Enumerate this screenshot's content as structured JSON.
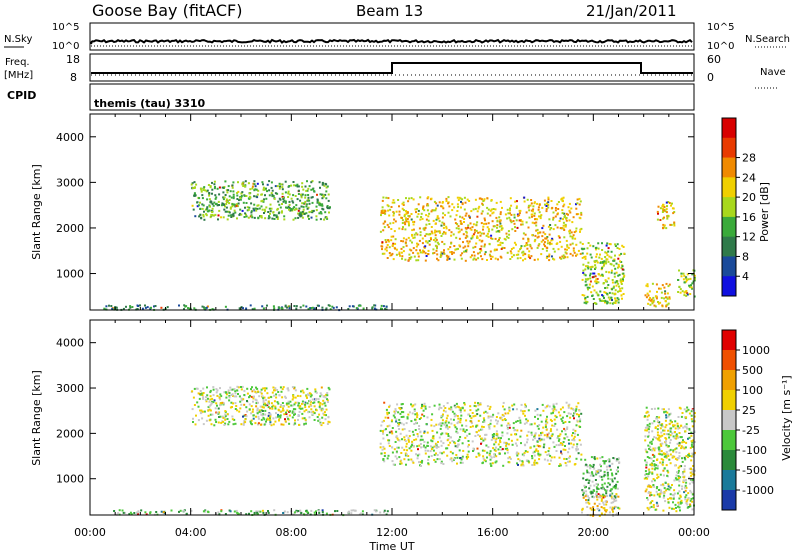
{
  "header": {
    "station": "Goose Bay (fitACF)",
    "beam": "Beam 13",
    "date": "21/Jan/2011"
  },
  "strips": {
    "nsky_label": "N.Sky",
    "nsky_ticks": [
      "10^5",
      "10^0"
    ],
    "nsearch_label": "N.Search",
    "nsearch_ticks": [
      "10^5",
      "10^0"
    ],
    "freq_label": "Freq.",
    "freq_unit": "[MHz]",
    "freq_ticks": [
      "18",
      "8"
    ],
    "nave_label": "Nave",
    "nave_ticks": [
      "60",
      "0"
    ],
    "cpid_label": "CPID",
    "cpid_value": "themis (tau) 3310"
  },
  "chart_data": [
    {
      "type": "heatmap",
      "name": "power",
      "ylabel": "Slant Range [km]",
      "xlabel": "Time UT",
      "xticks": [
        "00:00",
        "04:00",
        "08:00",
        "12:00",
        "16:00",
        "20:00",
        "00:00"
      ],
      "yticks": [
        1000,
        2000,
        3000,
        4000
      ],
      "ylim": [
        200,
        4500
      ],
      "xlim_hours": [
        0,
        24
      ],
      "colorbar": {
        "label": "Power [dB]",
        "ticks": [
          "4",
          "8",
          "12",
          "16",
          "20",
          "24",
          "28"
        ],
        "colors": [
          "#1010e0",
          "#1a4a9a",
          "#2f7a4a",
          "#3aaa3a",
          "#a8d81c",
          "#f0d000",
          "#f08a00",
          "#e83a00",
          "#d80000"
        ]
      },
      "blobs": [
        {
          "t0": 0.5,
          "t1": 11.8,
          "r0": 220,
          "r1": 330,
          "level": 2
        },
        {
          "t0": 4.0,
          "t1": 9.5,
          "r0": 2200,
          "r1": 3050,
          "level": 3
        },
        {
          "t0": 11.5,
          "t1": 19.5,
          "r0": 1300,
          "r1": 2700,
          "level": 5
        },
        {
          "t0": 19.5,
          "t1": 21.2,
          "r0": 350,
          "r1": 1700,
          "level": 4
        },
        {
          "t0": 22.0,
          "t1": 23.0,
          "r0": 300,
          "r1": 800,
          "level": 5
        },
        {
          "t0": 22.5,
          "t1": 23.2,
          "r0": 2000,
          "r1": 2600,
          "level": 5
        },
        {
          "t0": 23.3,
          "t1": 24.0,
          "r0": 500,
          "r1": 1100,
          "level": 4
        }
      ]
    },
    {
      "type": "heatmap",
      "name": "velocity",
      "ylabel": "Slant Range [km]",
      "xlabel": "Time UT",
      "xticks": [
        "00:00",
        "04:00",
        "08:00",
        "12:00",
        "16:00",
        "20:00",
        "00:00"
      ],
      "yticks": [
        1000,
        2000,
        3000,
        4000
      ],
      "ylim": [
        200,
        4500
      ],
      "xlim_hours": [
        0,
        24
      ],
      "colorbar": {
        "label": "Velocity [m s⁻¹]",
        "ticks": [
          "1000",
          "500",
          "100",
          "25",
          "-25",
          "-100",
          "-500",
          "-1000"
        ],
        "colors": [
          "#1a3aa8",
          "#1a7a9a",
          "#2a8a3a",
          "#4cc83a",
          "#c8c8c8",
          "#f0d000",
          "#f0a000",
          "#f05000",
          "#e00000"
        ]
      },
      "blobs": [
        {
          "t0": 0.5,
          "t1": 11.8,
          "r0": 220,
          "r1": 330,
          "level": 3
        },
        {
          "t0": 4.0,
          "t1": 9.5,
          "r0": 2200,
          "r1": 3050,
          "level": 4
        },
        {
          "t0": 11.5,
          "t1": 19.5,
          "r0": 1300,
          "r1": 2700,
          "level": 4
        },
        {
          "t0": 19.5,
          "t1": 21.0,
          "r0": 600,
          "r1": 1500,
          "level": 3
        },
        {
          "t0": 19.5,
          "t1": 21.0,
          "r0": 200,
          "r1": 700,
          "level": 5
        },
        {
          "t0": 22.0,
          "t1": 24.0,
          "r0": 300,
          "r1": 2600,
          "level": 4
        }
      ]
    }
  ]
}
